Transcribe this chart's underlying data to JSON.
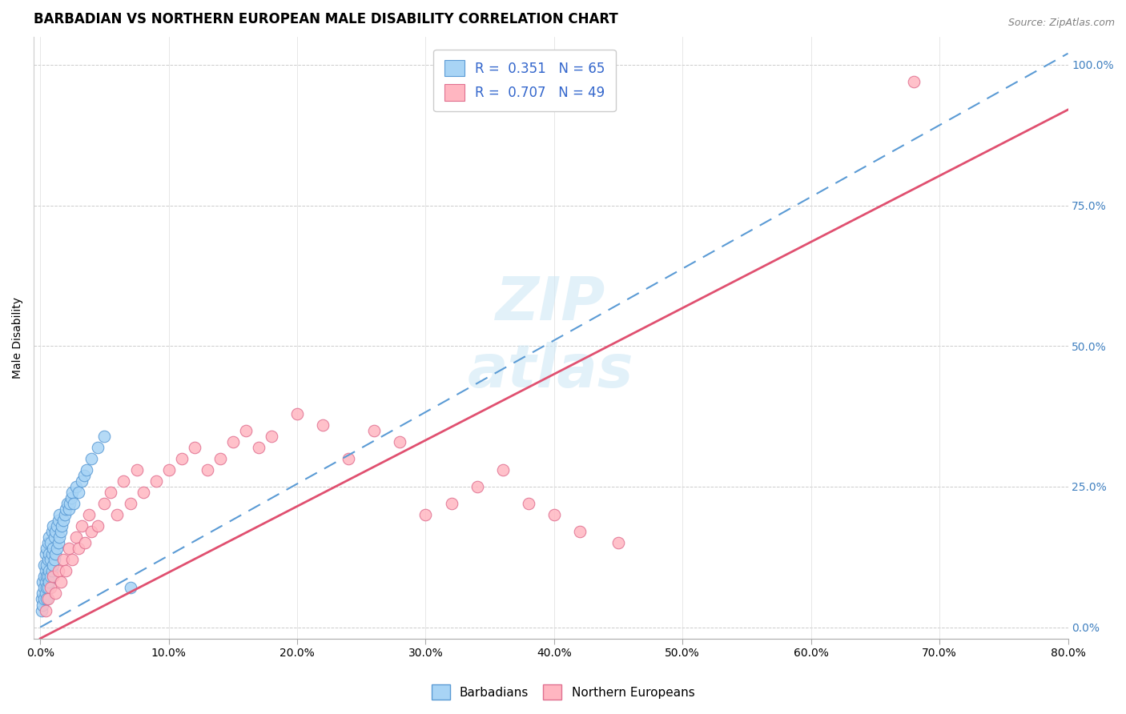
{
  "title": "BARBADIAN VS NORTHERN EUROPEAN MALE DISABILITY CORRELATION CHART",
  "source": "Source: ZipAtlas.com",
  "xlim": [
    -0.005,
    0.8
  ],
  "ylim": [
    -0.02,
    1.05
  ],
  "legend_label1": "Barbadians",
  "legend_label2": "Northern Europeans",
  "R1": 0.351,
  "N1": 65,
  "R2": 0.707,
  "N2": 49,
  "blue_scatter_color": "#a8d4f5",
  "blue_edge_color": "#5b9bd5",
  "pink_scatter_color": "#ffb6c1",
  "pink_edge_color": "#e07090",
  "trend_blue_color": "#5b9bd5",
  "trend_pink_color": "#e05070",
  "watermark_color": "#d0e8f5",
  "title_fontsize": 12,
  "tick_fontsize": 10,
  "ylabel_fontsize": 10,
  "right_tick_color": "#4080c0",
  "barbadians_x": [
    0.001,
    0.001,
    0.002,
    0.002,
    0.002,
    0.003,
    0.003,
    0.003,
    0.003,
    0.004,
    0.004,
    0.004,
    0.004,
    0.005,
    0.005,
    0.005,
    0.005,
    0.005,
    0.006,
    0.006,
    0.006,
    0.006,
    0.007,
    0.007,
    0.007,
    0.007,
    0.008,
    0.008,
    0.008,
    0.009,
    0.009,
    0.009,
    0.01,
    0.01,
    0.01,
    0.011,
    0.011,
    0.012,
    0.012,
    0.013,
    0.013,
    0.014,
    0.014,
    0.015,
    0.015,
    0.016,
    0.017,
    0.018,
    0.019,
    0.02,
    0.021,
    0.022,
    0.023,
    0.024,
    0.025,
    0.026,
    0.028,
    0.03,
    0.032,
    0.034,
    0.036,
    0.04,
    0.045,
    0.05,
    0.07
  ],
  "barbadians_y": [
    0.03,
    0.05,
    0.04,
    0.06,
    0.08,
    0.05,
    0.07,
    0.09,
    0.11,
    0.06,
    0.08,
    0.1,
    0.13,
    0.05,
    0.07,
    0.09,
    0.11,
    0.14,
    0.07,
    0.09,
    0.12,
    0.15,
    0.08,
    0.1,
    0.13,
    0.16,
    0.09,
    0.12,
    0.15,
    0.1,
    0.13,
    0.17,
    0.11,
    0.14,
    0.18,
    0.12,
    0.16,
    0.13,
    0.17,
    0.14,
    0.18,
    0.15,
    0.19,
    0.16,
    0.2,
    0.17,
    0.18,
    0.19,
    0.2,
    0.21,
    0.22,
    0.21,
    0.22,
    0.23,
    0.24,
    0.22,
    0.25,
    0.24,
    0.26,
    0.27,
    0.28,
    0.3,
    0.32,
    0.34,
    0.07
  ],
  "northern_x": [
    0.004,
    0.006,
    0.008,
    0.01,
    0.012,
    0.014,
    0.016,
    0.018,
    0.02,
    0.022,
    0.025,
    0.028,
    0.03,
    0.032,
    0.035,
    0.038,
    0.04,
    0.045,
    0.05,
    0.055,
    0.06,
    0.065,
    0.07,
    0.075,
    0.08,
    0.09,
    0.1,
    0.11,
    0.12,
    0.13,
    0.14,
    0.15,
    0.16,
    0.17,
    0.18,
    0.2,
    0.22,
    0.24,
    0.26,
    0.28,
    0.3,
    0.32,
    0.34,
    0.36,
    0.38,
    0.4,
    0.42,
    0.45,
    0.68
  ],
  "northern_y": [
    0.03,
    0.05,
    0.07,
    0.09,
    0.06,
    0.1,
    0.08,
    0.12,
    0.1,
    0.14,
    0.12,
    0.16,
    0.14,
    0.18,
    0.15,
    0.2,
    0.17,
    0.18,
    0.22,
    0.24,
    0.2,
    0.26,
    0.22,
    0.28,
    0.24,
    0.26,
    0.28,
    0.3,
    0.32,
    0.28,
    0.3,
    0.33,
    0.35,
    0.32,
    0.34,
    0.38,
    0.36,
    0.3,
    0.35,
    0.33,
    0.2,
    0.22,
    0.25,
    0.28,
    0.22,
    0.2,
    0.17,
    0.15,
    0.97
  ],
  "trend_blue_x0": 0.0,
  "trend_blue_y0": 0.0,
  "trend_blue_x1": 0.8,
  "trend_blue_y1": 1.02,
  "trend_pink_x0": 0.0,
  "trend_pink_y0": -0.02,
  "trend_pink_x1": 0.8,
  "trend_pink_y1": 0.92
}
